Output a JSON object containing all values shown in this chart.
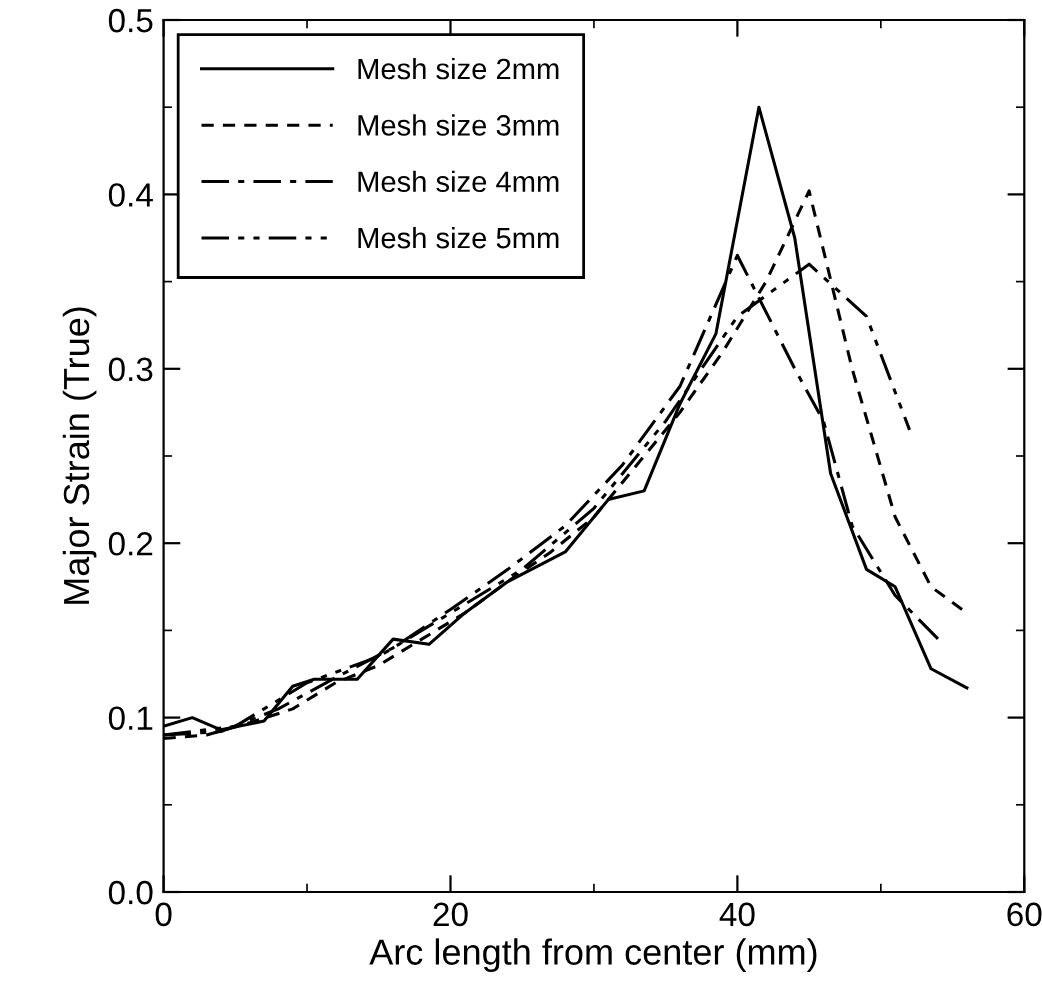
{
  "chart_data": {
    "type": "line",
    "xlabel": "Arc length from center (mm)",
    "ylabel": "Major Strain (True)",
    "xlim": [
      0,
      60
    ],
    "ylim": [
      0,
      0.5
    ],
    "xticks": [
      0,
      {
        "value": 10,
        "label": null
      },
      20,
      {
        "value": 30,
        "label": null
      },
      40,
      {
        "value": 50,
        "label": null
      },
      60
    ],
    "yticks": [
      {
        "value": 0,
        "label": "0.0"
      },
      {
        "value": 0.05,
        "label": null
      },
      {
        "value": 0.1,
        "label": "0.1"
      },
      {
        "value": 0.15,
        "label": null
      },
      {
        "value": 0.2,
        "label": "0.2"
      },
      {
        "value": 0.25,
        "label": null
      },
      {
        "value": 0.3,
        "label": "0.3"
      },
      {
        "value": 0.35,
        "label": null
      },
      {
        "value": 0.4,
        "label": "0.4"
      },
      {
        "value": 0.45,
        "label": null
      },
      {
        "value": 0.5,
        "label": "0.5"
      }
    ],
    "legend": "top left",
    "grid": false,
    "marker": "none",
    "series": [
      {
        "name": "Mesh size 2mm",
        "color": "#000000",
        "line_style": "solid",
        "x": [
          0,
          2,
          4,
          7,
          9,
          10.5,
          13.5,
          16,
          18.5,
          21,
          24,
          28,
          31,
          33.5,
          36,
          38.5,
          41.5,
          44,
          46.5,
          49,
          51,
          53.5,
          56
        ],
        "values": [
          0.095,
          0.1,
          0.093,
          0.098,
          0.118,
          0.122,
          0.122,
          0.145,
          0.142,
          0.16,
          0.178,
          0.195,
          0.225,
          0.23,
          0.28,
          0.32,
          0.45,
          0.375,
          0.24,
          0.185,
          0.175,
          0.128,
          0.117
        ]
      },
      {
        "name": "Mesh size 3mm",
        "color": "#000000",
        "line_style": "dashed",
        "x": [
          0,
          3,
          6,
          9,
          12,
          15,
          18,
          21,
          24,
          27,
          30,
          33,
          36,
          39,
          42,
          45,
          48,
          51,
          53.5,
          56
        ],
        "values": [
          0.088,
          0.09,
          0.097,
          0.105,
          0.12,
          0.13,
          0.145,
          0.16,
          0.178,
          0.195,
          0.215,
          0.245,
          0.275,
          0.31,
          0.35,
          0.402,
          0.3,
          0.215,
          0.175,
          0.16
        ]
      },
      {
        "name": "Mesh size 4mm",
        "color": "#000000",
        "line_style": "dashdot",
        "x": [
          0,
          4,
          8,
          12,
          16,
          20,
          24,
          28,
          32,
          36,
          40,
          44,
          46,
          48,
          51,
          54
        ],
        "values": [
          0.09,
          0.092,
          0.105,
          0.123,
          0.14,
          0.162,
          0.185,
          0.21,
          0.245,
          0.29,
          0.365,
          0.3,
          0.27,
          0.21,
          0.17,
          0.145
        ]
      },
      {
        "name": "Mesh size 5mm",
        "color": "#000000",
        "line_style": "dashdotdot",
        "x": [
          0,
          5,
          10,
          15,
          20,
          25,
          30,
          35,
          40,
          45,
          49,
          52
        ],
        "values": [
          0.09,
          0.095,
          0.12,
          0.135,
          0.16,
          0.185,
          0.22,
          0.27,
          0.33,
          0.36,
          0.33,
          0.265
        ]
      }
    ]
  }
}
